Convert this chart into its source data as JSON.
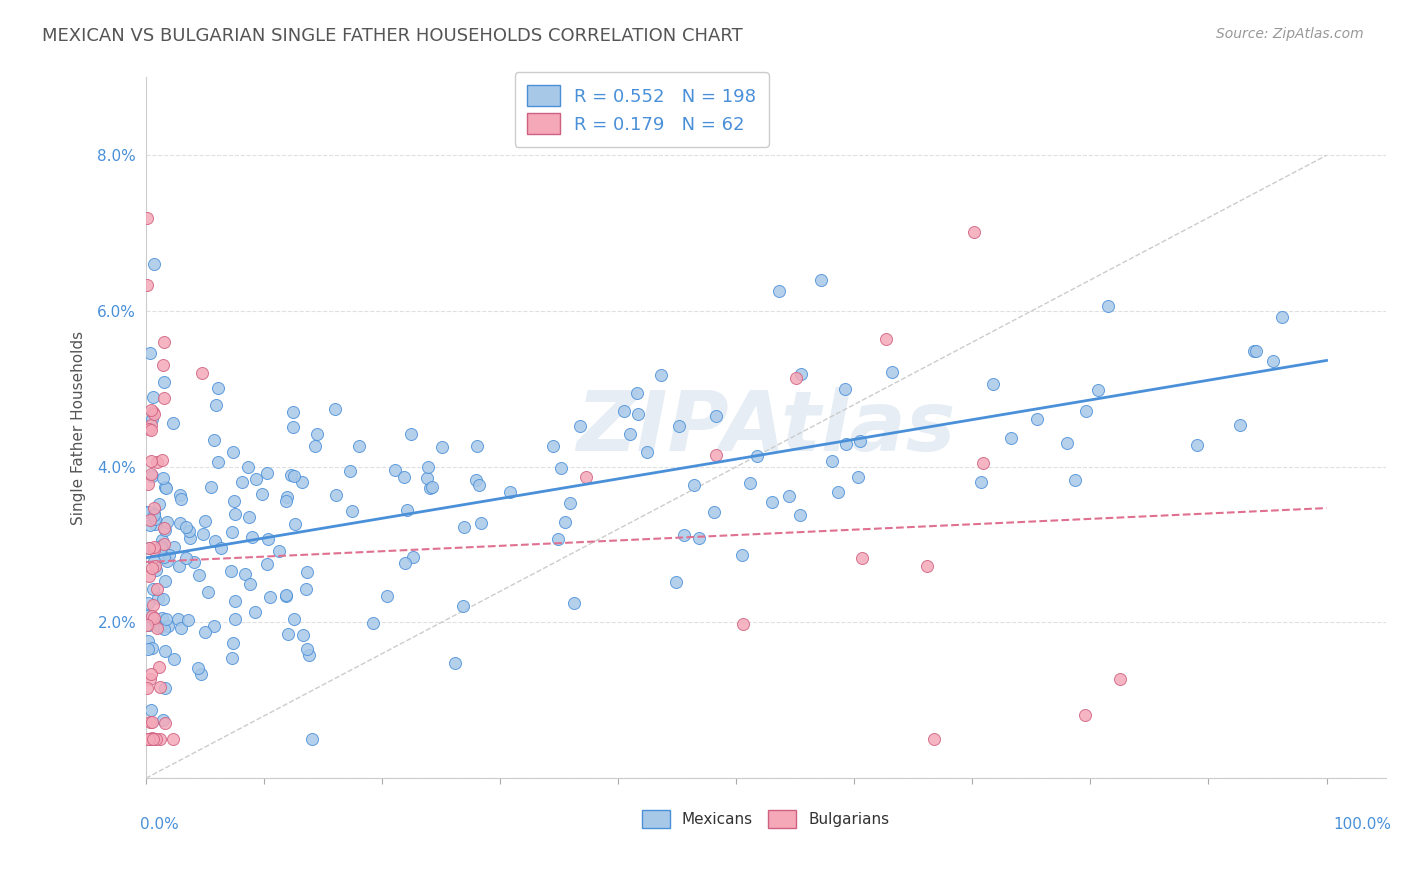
{
  "title": "MEXICAN VS BULGARIAN SINGLE FATHER HOUSEHOLDS CORRELATION CHART",
  "source_text": "Source: ZipAtlas.com",
  "ylabel": "Single Father Households",
  "watermark": "ZIPAtlas",
  "legend": {
    "mexican_R": 0.552,
    "mexican_N": 198,
    "bulgarian_R": 0.179,
    "bulgarian_N": 62
  },
  "mexican_color": "#a8c8e8",
  "bulgarian_color": "#f4a8b8",
  "mexican_line_color": "#4a90d9",
  "bulgarian_line_color": "#e07090",
  "background_color": "#ffffff",
  "grid_color": "#e0e0e0",
  "title_color": "#555555",
  "axis_label_color": "#4a90d9",
  "legend_R_color": "#4a90d9",
  "ylim_min": 0.0,
  "ylim_max": 0.09,
  "xlim_min": 0.0,
  "xlim_max": 1.05,
  "mexican_seed": 42,
  "bulgarian_seed": 123
}
